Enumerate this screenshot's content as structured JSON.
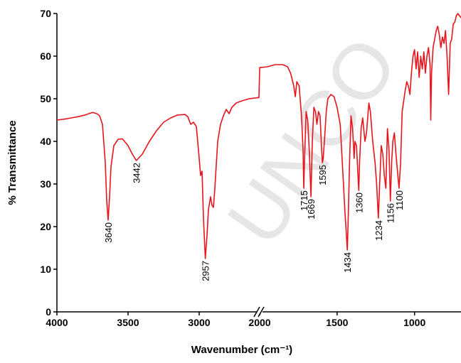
{
  "chart_data": {
    "type": "line",
    "x_label": "Wavenumber (cm⁻¹)",
    "y_label": "% Transmittance",
    "watermark": "UNCO",
    "xlim": [
      4000,
      700
    ],
    "x_break": [
      2575,
      2000
    ],
    "xticks": [
      4000,
      3500,
      3000,
      2000,
      1500,
      1000
    ],
    "ylim": [
      0,
      70
    ],
    "yticks": [
      0,
      10,
      20,
      30,
      40,
      50,
      60,
      70
    ],
    "series": [
      {
        "name": "spectrum",
        "color": "#e8141b",
        "x": [
          4000,
          3950,
          3900,
          3850,
          3800,
          3750,
          3720,
          3700,
          3680,
          3660,
          3650,
          3640,
          3630,
          3620,
          3600,
          3570,
          3540,
          3500,
          3470,
          3442,
          3400,
          3350,
          3300,
          3250,
          3200,
          3150,
          3100,
          3080,
          3060,
          3040,
          3020,
          3000,
          2990,
          2980,
          2970,
          2957,
          2945,
          2935,
          2920,
          2910,
          2900,
          2890,
          2870,
          2850,
          2830,
          2810,
          2790,
          2770,
          2740,
          2700,
          2650,
          2600,
          2580,
          2000,
          1950,
          1900,
          1850,
          1820,
          1800,
          1780,
          1770,
          1760,
          1745,
          1730,
          1720,
          1715,
          1710,
          1700,
          1690,
          1680,
          1669,
          1660,
          1650,
          1640,
          1630,
          1620,
          1610,
          1600,
          1595,
          1590,
          1580,
          1570,
          1560,
          1540,
          1520,
          1500,
          1480,
          1465,
          1450,
          1440,
          1434,
          1428,
          1420,
          1410,
          1400,
          1390,
          1385,
          1375,
          1365,
          1360,
          1355,
          1345,
          1335,
          1320,
          1310,
          1295,
          1285,
          1270,
          1255,
          1245,
          1234,
          1225,
          1215,
          1205,
          1195,
          1185,
          1175,
          1165,
          1156,
          1148,
          1140,
          1130,
          1120,
          1110,
          1100,
          1090,
          1080,
          1060,
          1050,
          1040,
          1030,
          1020,
          1010,
          1000,
          990,
          980,
          970,
          960,
          950,
          940,
          930,
          920,
          910,
          900,
          895,
          890,
          880,
          870,
          860,
          850,
          840,
          830,
          820,
          810,
          800,
          790,
          780,
          770,
          760,
          750,
          740,
          730,
          720,
          710,
          700
        ],
        "values": [
          45,
          45.2,
          45.5,
          45.8,
          46.2,
          46.8,
          46.5,
          46,
          44,
          35,
          26,
          21.5,
          27,
          34,
          39,
          40.5,
          40.6,
          39,
          37,
          35.5,
          37,
          40,
          42.5,
          44.5,
          45.5,
          46.2,
          46.3,
          45.8,
          44,
          44.5,
          43.5,
          36,
          32,
          33,
          22,
          12.5,
          18,
          24,
          27,
          25,
          24.5,
          29,
          40,
          44,
          46,
          47.5,
          46.5,
          48,
          49,
          49.5,
          50,
          50.2,
          50.3,
          57.3,
          57.5,
          58,
          58,
          57.5,
          56,
          53,
          50.5,
          54,
          53,
          46,
          38,
          29,
          36,
          47,
          45,
          38,
          27,
          40,
          48,
          47,
          44,
          47,
          46,
          38,
          35,
          36,
          41,
          47,
          50,
          51,
          50.5,
          48,
          44,
          34,
          24,
          18,
          14.5,
          22,
          35,
          46,
          43,
          36,
          40,
          39,
          32,
          28.5,
          35,
          43,
          45.5,
          40,
          42,
          49,
          47,
          40,
          35,
          30,
          22,
          30,
          39,
          37,
          32,
          29,
          43,
          38,
          26,
          35,
          40,
          42,
          37,
          33,
          29,
          35,
          47,
          52,
          54,
          53,
          51,
          56,
          60,
          61.5,
          57,
          61,
          55,
          60,
          57,
          61,
          56,
          60,
          62,
          58,
          45,
          56,
          62,
          64,
          66,
          67,
          65,
          62,
          64.5,
          63,
          66,
          60,
          51,
          63,
          64,
          67.5,
          68,
          69.5,
          70,
          69.5,
          69
        ]
      }
    ],
    "annotations": [
      {
        "text": "3640",
        "x": 3640,
        "y": 21.5
      },
      {
        "text": "3442",
        "x": 3442,
        "y": 35.5
      },
      {
        "text": "2957",
        "x": 2957,
        "y": 12.5
      },
      {
        "text": "1715",
        "x": 1715,
        "y": 29
      },
      {
        "text": "1669",
        "x": 1669,
        "y": 27
      },
      {
        "text": "1595",
        "x": 1595,
        "y": 35
      },
      {
        "text": "1434",
        "x": 1434,
        "y": 14.5
      },
      {
        "text": "1360",
        "x": 1360,
        "y": 28.5
      },
      {
        "text": "1234",
        "x": 1234,
        "y": 22
      },
      {
        "text": "1156",
        "x": 1156,
        "y": 26
      },
      {
        "text": "1100",
        "x": 1100,
        "y": 29
      }
    ]
  }
}
